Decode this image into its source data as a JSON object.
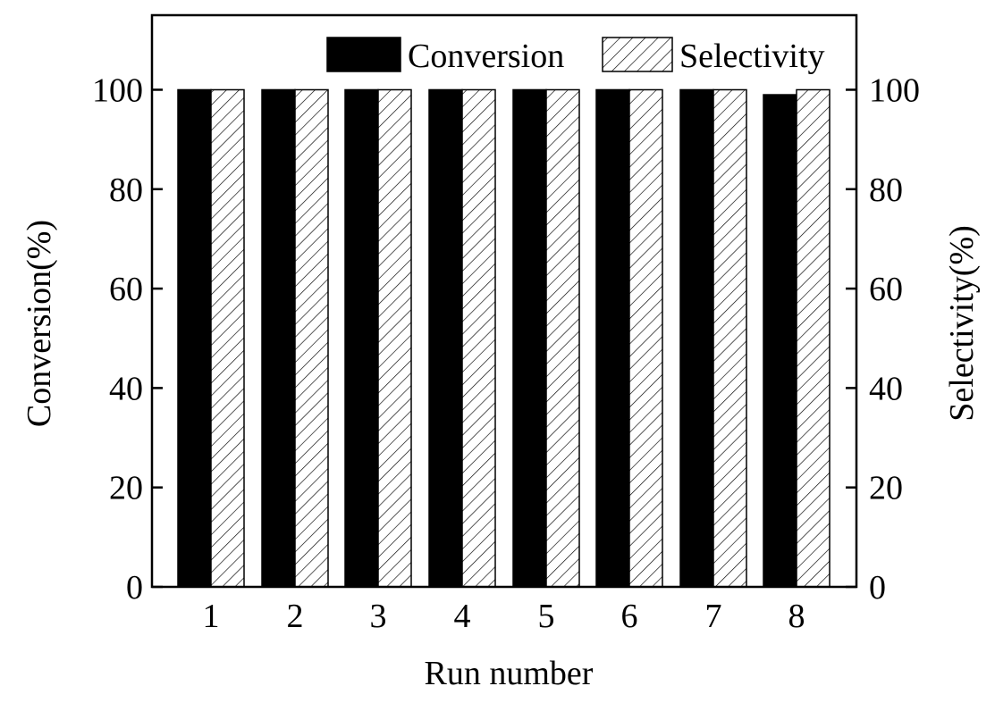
{
  "chart_data": {
    "type": "bar",
    "xlabel": "Run number",
    "ylabel_left": "Conversion(%)",
    "ylabel_right": "Selectivity(%)",
    "categories": [
      "1",
      "2",
      "3",
      "4",
      "5",
      "6",
      "7",
      "8"
    ],
    "series": [
      {
        "name": "Conversion",
        "values": [
          100,
          100,
          100,
          100,
          100,
          100,
          100,
          99
        ],
        "fill": "solid",
        "color": "#000000"
      },
      {
        "name": "Selectivity",
        "values": [
          100,
          100,
          100,
          100,
          100,
          100,
          100,
          100
        ],
        "fill": "hatched",
        "color": "#000000"
      }
    ],
    "ylim": [
      0,
      115
    ],
    "yticks": [
      0,
      20,
      40,
      60,
      80,
      100
    ],
    "grid": false,
    "legend_position": "top-right"
  }
}
